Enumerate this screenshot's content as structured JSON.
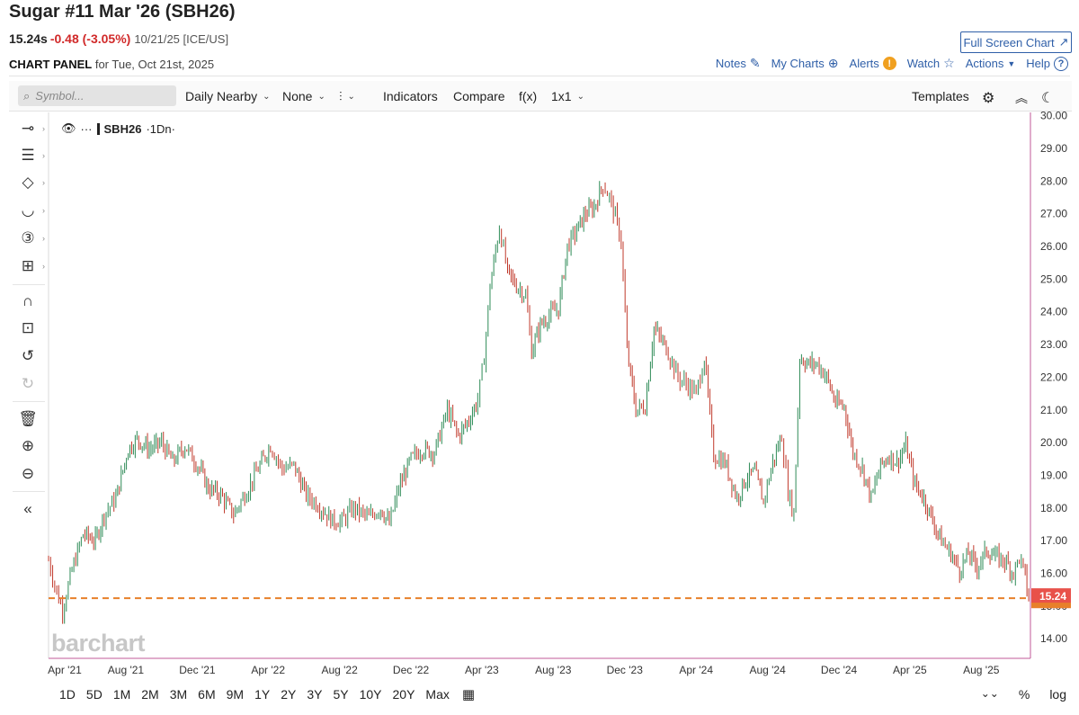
{
  "header": {
    "title": "Sugar #11 Mar '26 (SBH26)",
    "last": "15.24s",
    "change": "-0.48 (-3.05%)",
    "date_exchange": "10/21/25 [ICE/US]",
    "fullscreen_label": "Full Screen Chart",
    "panel_label": "CHART PANEL",
    "panel_date": "for Tue, Oct 21st, 2025"
  },
  "links": {
    "notes": "Notes",
    "my_charts": "My Charts",
    "alerts": "Alerts",
    "watch": "Watch",
    "actions": "Actions",
    "help": "Help"
  },
  "toolbar": {
    "symbol_placeholder": "Symbol...",
    "aggregation": "Daily Nearby",
    "overlay": "None",
    "indicators": "Indicators",
    "compare": "Compare",
    "fx": "f(x)",
    "layout": "1x1",
    "templates": "Templates"
  },
  "legend": {
    "symbol": "SBH26",
    "interval": "·1Dn·"
  },
  "watermark": "barchart",
  "periods": [
    "1D",
    "5D",
    "1M",
    "2M",
    "3M",
    "6M",
    "9M",
    "1Y",
    "2Y",
    "3Y",
    "5Y",
    "10Y",
    "20Y",
    "Max"
  ],
  "bottom_right": {
    "percent": "%",
    "log": "log"
  },
  "colors": {
    "up": "#2e8b57",
    "down": "#c0392b",
    "last_line": "#e8802a",
    "price_tag": "#e8514a",
    "axis_line": "#c05a9a",
    "link": "#2f5fa8"
  },
  "icons": {
    "left_tools": [
      "line-tool-icon",
      "fib-tool-icon",
      "shape-tool-icon",
      "curve-tool-icon",
      "number-tool-icon",
      "measure-tool-icon",
      "magnet-icon",
      "unlock-icon",
      "undo-icon",
      "redo-icon",
      "trash-icon",
      "zoom-in-icon",
      "zoom-out-icon",
      "collapse-icon"
    ]
  },
  "chart_data": {
    "type": "line",
    "style": "ohlc-bars",
    "x_tick_labels": [
      "Apr '21",
      "Aug '21",
      "Dec '21",
      "Apr '22",
      "Aug '22",
      "Dec '22",
      "Apr '23",
      "Aug '23",
      "Dec '23",
      "Apr '24",
      "Aug '24",
      "Dec '24",
      "Apr '25",
      "Aug '25"
    ],
    "y_tick_labels": [
      "14.00",
      "15.00",
      "16.00",
      "17.00",
      "18.00",
      "19.00",
      "20.00",
      "21.00",
      "22.00",
      "23.00",
      "24.00",
      "25.00",
      "26.00",
      "27.00",
      "28.00",
      "29.00",
      "30.00"
    ],
    "ylim": [
      13.4,
      30.1
    ],
    "last_price": 15.24,
    "last_price_label": "15.24",
    "series": [
      {
        "x": [
          "2021-03-22",
          "2021-04-05",
          "2021-04-15",
          "2021-05-01",
          "2021-05-20",
          "2021-06-10",
          "2021-06-25",
          "2021-07-15",
          "2021-08-05",
          "2021-08-20",
          "2021-09-10",
          "2021-10-01",
          "2021-10-20",
          "2021-11-10",
          "2021-12-05",
          "2021-12-20",
          "2022-01-10",
          "2022-02-01",
          "2022-02-20",
          "2022-03-15",
          "2022-04-05",
          "2022-04-25",
          "2022-05-15",
          "2022-06-05",
          "2022-06-25",
          "2022-07-20",
          "2022-08-05",
          "2022-08-25",
          "2022-09-20",
          "2022-10-10",
          "2022-10-25",
          "2022-11-10",
          "2022-12-01",
          "2022-12-20",
          "2023-01-10",
          "2023-02-01",
          "2023-02-20",
          "2023-03-10",
          "2023-03-25",
          "2023-04-05",
          "2023-04-15",
          "2023-05-01",
          "2023-05-15",
          "2023-05-30",
          "2023-06-15",
          "2023-06-25",
          "2023-07-10",
          "2023-07-25",
          "2023-08-10",
          "2023-08-25",
          "2023-09-10",
          "2023-09-25",
          "2023-10-10",
          "2023-10-25",
          "2023-11-05",
          "2023-11-15",
          "2023-11-25",
          "2023-12-05",
          "2023-12-20",
          "2024-01-05",
          "2024-01-20",
          "2024-02-10",
          "2024-03-01",
          "2024-03-15",
          "2024-04-01",
          "2024-04-15",
          "2024-05-01",
          "2024-05-20",
          "2024-06-10",
          "2024-06-25",
          "2024-07-10",
          "2024-07-25",
          "2024-08-10",
          "2024-08-25",
          "2024-09-05",
          "2024-09-15",
          "2024-09-25",
          "2024-10-10",
          "2024-10-25",
          "2024-11-10",
          "2024-11-25",
          "2024-12-10",
          "2024-12-25",
          "2025-01-10",
          "2025-01-25",
          "2025-02-10",
          "2025-02-25",
          "2025-03-10",
          "2025-03-25",
          "2025-04-10",
          "2025-04-25",
          "2025-05-10",
          "2025-05-25",
          "2025-06-10",
          "2025-06-25",
          "2025-07-10",
          "2025-07-25",
          "2025-08-10",
          "2025-08-25",
          "2025-09-10",
          "2025-09-25",
          "2025-10-05",
          "2025-10-15",
          "2025-10-21"
        ],
        "values": [
          16.4,
          15.4,
          14.9,
          16.1,
          17.2,
          17.0,
          17.8,
          18.3,
          19.8,
          20.1,
          19.8,
          20.0,
          19.4,
          19.9,
          19.2,
          18.6,
          18.4,
          17.8,
          18.4,
          19.2,
          19.9,
          19.2,
          19.3,
          18.4,
          18.1,
          17.6,
          17.6,
          18.0,
          17.7,
          18.0,
          17.5,
          18.6,
          19.5,
          19.8,
          19.7,
          21.0,
          20.2,
          20.7,
          21.3,
          22.6,
          24.8,
          26.6,
          25.2,
          24.8,
          24.5,
          22.8,
          23.6,
          23.9,
          24.1,
          26.0,
          26.5,
          27.0,
          27.2,
          27.9,
          27.5,
          26.9,
          26.2,
          22.8,
          21.0,
          21.1,
          23.5,
          22.9,
          22.0,
          21.8,
          21.5,
          22.6,
          19.6,
          19.4,
          18.3,
          18.9,
          19.1,
          18.2,
          19.4,
          20.2,
          18.5,
          17.8,
          22.6,
          22.4,
          22.4,
          22.0,
          21.2,
          21.1,
          19.7,
          19.2,
          18.3,
          19.3,
          19.6,
          19.4,
          19.9,
          18.7,
          18.3,
          17.6,
          17.0,
          16.6,
          16.1,
          16.6,
          16.2,
          16.7,
          16.5,
          16.4,
          16.0,
          16.5,
          15.9,
          15.24
        ]
      }
    ],
    "grid": false,
    "xlabel": "",
    "ylabel": ""
  }
}
